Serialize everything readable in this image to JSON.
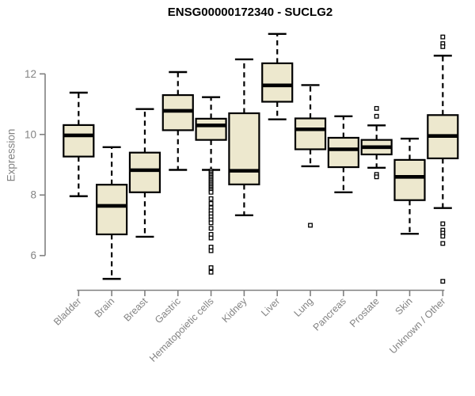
{
  "chart_data": {
    "type": "boxplot",
    "title": "ENSG00000172340 - SUCLG2",
    "ylabel": "Expression",
    "xlabel": "",
    "ylim": [
      5,
      13.5
    ],
    "yticks": [
      6,
      8,
      10,
      12
    ],
    "grid": false,
    "legend": null,
    "colors": {
      "box_fill": "#EDE8CE",
      "box_stroke": "#000000",
      "median": "#000000",
      "whisker": "#000000",
      "outlier_stroke": "#000000",
      "outlier_fill": "#FFFFFF",
      "axis_line": "#808080",
      "axis_text": "#838383",
      "title_text": "#000000",
      "background": "#FFFFFF"
    },
    "categories": [
      "Bladder",
      "Brain",
      "Breast",
      "Gastric",
      "Hematopoietic cells",
      "Kidney",
      "Liver",
      "Lung",
      "Pancreas",
      "Prostate",
      "Skin",
      "Unknown / Other"
    ],
    "series": [
      {
        "category": "Bladder",
        "whisker_low": 7.96,
        "q1": 9.27,
        "median": 9.97,
        "q3": 10.31,
        "whisker_high": 11.38,
        "outliers": []
      },
      {
        "category": "Brain",
        "whisker_low": 5.23,
        "q1": 6.7,
        "median": 7.64,
        "q3": 8.34,
        "whisker_high": 9.58,
        "outliers": []
      },
      {
        "category": "Breast",
        "whisker_low": 6.62,
        "q1": 8.09,
        "median": 8.82,
        "q3": 9.4,
        "whisker_high": 10.84,
        "outliers": []
      },
      {
        "category": "Gastric",
        "whisker_low": 8.83,
        "q1": 10.14,
        "median": 10.78,
        "q3": 11.3,
        "whisker_high": 12.06,
        "outliers": []
      },
      {
        "category": "Hematopoietic cells",
        "whisker_low": 8.83,
        "q1": 9.82,
        "median": 10.3,
        "q3": 10.52,
        "whisker_high": 11.23,
        "outliers": [
          8.79,
          8.74,
          8.69,
          8.64,
          8.59,
          8.54,
          8.49,
          8.44,
          8.39,
          8.34,
          8.29,
          8.24,
          8.19,
          8.14,
          8.09,
          7.88,
          7.72,
          7.58,
          7.48,
          7.38,
          7.28,
          7.18,
          7.08,
          6.9,
          6.7,
          6.58,
          6.28,
          6.16,
          5.6,
          5.45
        ]
      },
      {
        "category": "Kidney",
        "whisker_low": 7.33,
        "q1": 8.35,
        "median": 8.8,
        "q3": 10.7,
        "whisker_high": 12.48,
        "outliers": []
      },
      {
        "category": "Liver",
        "whisker_low": 10.5,
        "q1": 11.08,
        "median": 11.62,
        "q3": 12.35,
        "whisker_high": 13.32,
        "outliers": []
      },
      {
        "category": "Lung",
        "whisker_low": 8.95,
        "q1": 9.51,
        "median": 10.17,
        "q3": 10.53,
        "whisker_high": 11.63,
        "outliers": [
          7.0
        ]
      },
      {
        "category": "Pancreas",
        "whisker_low": 8.09,
        "q1": 8.92,
        "median": 9.51,
        "q3": 9.89,
        "whisker_high": 10.6,
        "outliers": []
      },
      {
        "category": "Prostate",
        "whisker_low": 8.9,
        "q1": 9.34,
        "median": 9.58,
        "q3": 9.82,
        "whisker_high": 10.3,
        "outliers": [
          10.86,
          10.6,
          8.68,
          8.6
        ]
      },
      {
        "category": "Skin",
        "whisker_low": 6.72,
        "q1": 7.83,
        "median": 8.6,
        "q3": 9.16,
        "whisker_high": 9.86,
        "outliers": []
      },
      {
        "category": "Unknown / Other",
        "whisker_low": 7.57,
        "q1": 9.21,
        "median": 9.95,
        "q3": 10.64,
        "whisker_high": 12.6,
        "outliers": [
          13.22,
          13.0,
          12.9,
          7.05,
          6.84,
          6.74,
          6.64,
          6.4,
          5.15
        ]
      }
    ]
  }
}
